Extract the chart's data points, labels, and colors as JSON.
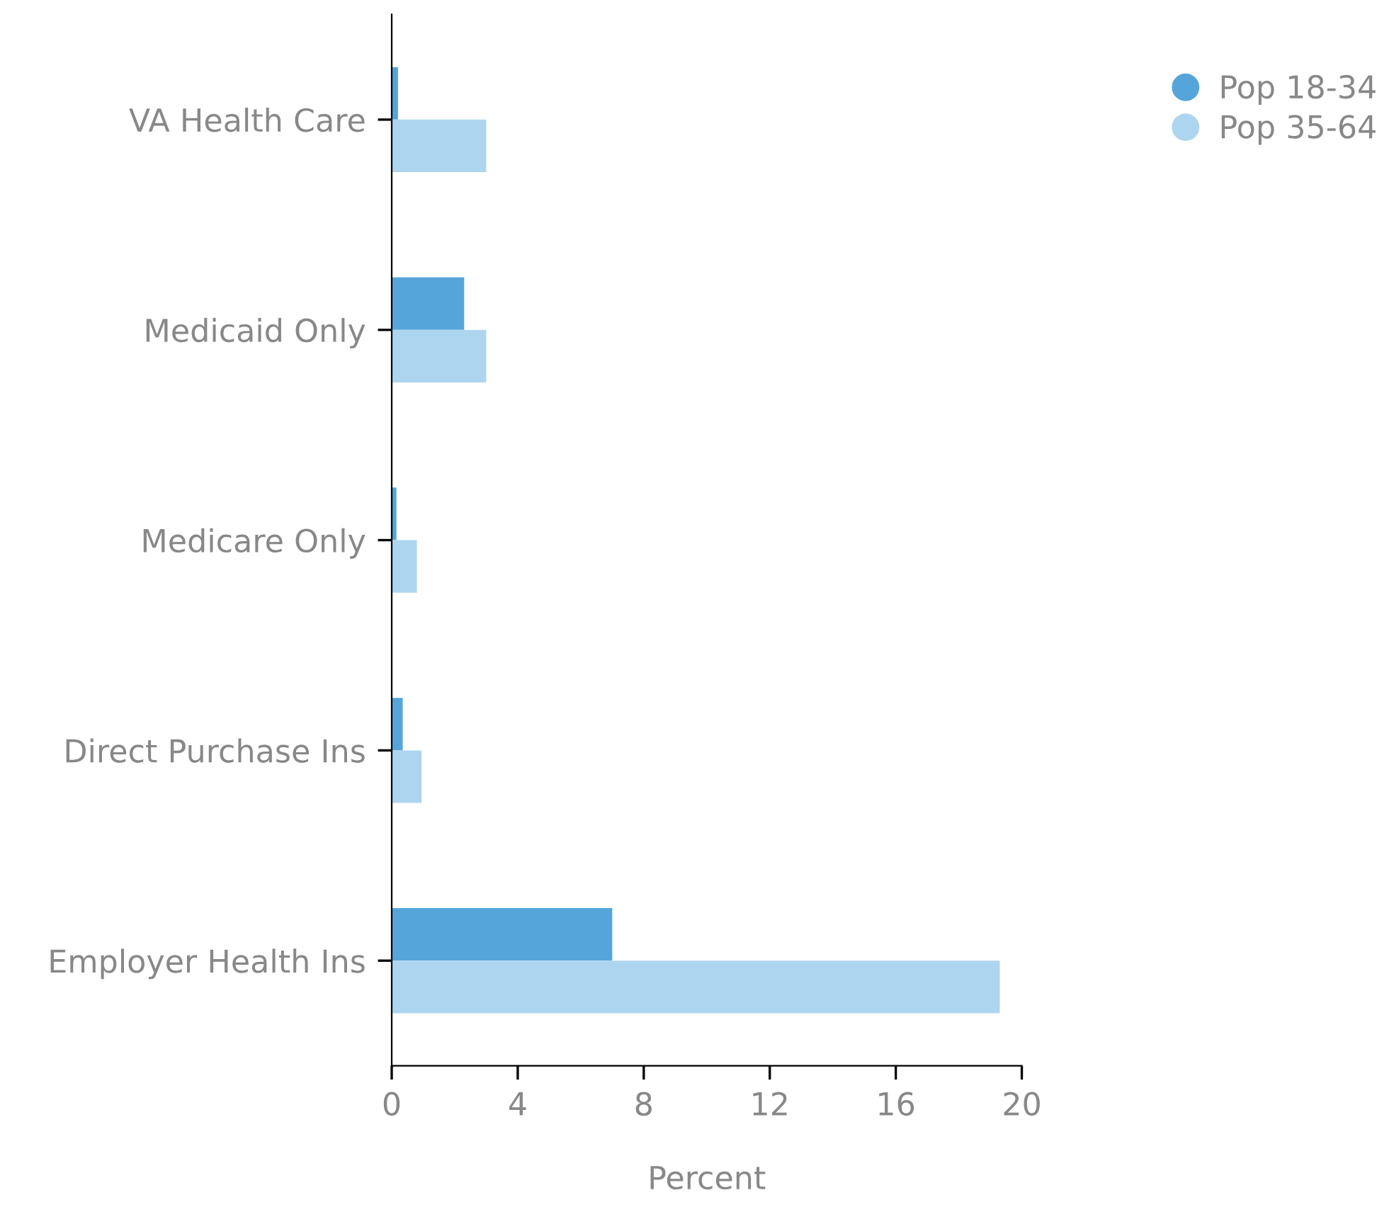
{
  "chart_data": {
    "type": "bar",
    "orientation": "horizontal",
    "xlabel": "Percent",
    "categories": [
      "VA Health Care",
      "Medicaid Only",
      "Medicare Only",
      "Direct Purchase Ins",
      "Employer Health Ins"
    ],
    "series": [
      {
        "name": "Pop 18-34",
        "color": "#56a5da",
        "values": [
          0.2,
          2.3,
          0.15,
          0.35,
          7.0
        ]
      },
      {
        "name": "Pop 35-64",
        "color": "#aed5f0",
        "values": [
          3.0,
          3.0,
          0.8,
          0.95,
          19.3
        ]
      }
    ],
    "xlim": [
      0,
      20
    ],
    "xticks": [
      0,
      4,
      8,
      12,
      16,
      20
    ],
    "grid": false,
    "legend": "top right"
  }
}
